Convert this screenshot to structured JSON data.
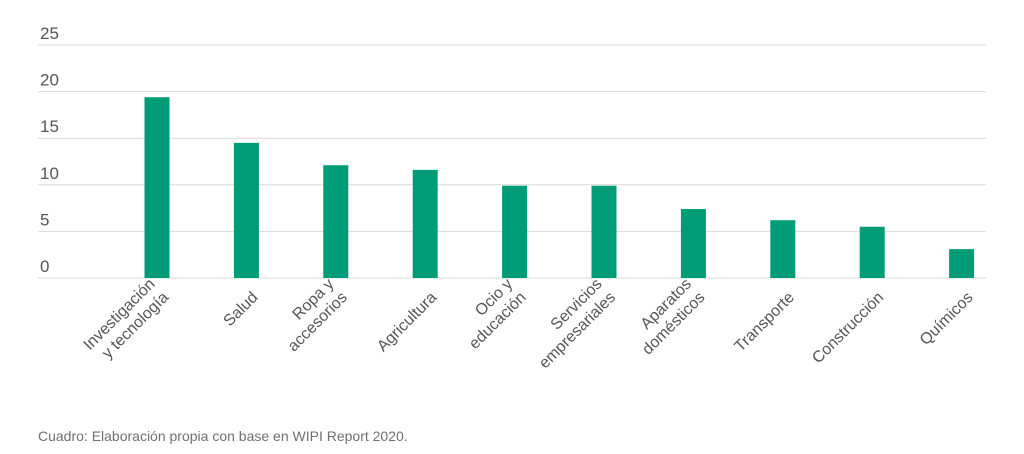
{
  "chart_data": {
    "type": "bar",
    "categories": [
      [
        "Investigación",
        "y tecnología"
      ],
      [
        "Salud"
      ],
      [
        "Ropa y",
        "accesorios"
      ],
      [
        "Agricultura"
      ],
      [
        "Ocio y",
        "educación"
      ],
      [
        "Servicios",
        "empresariales"
      ],
      [
        "Aparatos",
        "domésticos"
      ],
      [
        "Transporte"
      ],
      [
        "Construcción"
      ],
      [
        "Químicos"
      ]
    ],
    "values": [
      19.4,
      14.5,
      12.1,
      11.6,
      9.9,
      9.9,
      7.4,
      6.2,
      5.5,
      3.1
    ],
    "yticks": [
      "0",
      "5",
      "10",
      "15",
      "20",
      "25"
    ],
    "ylim": [
      0,
      25
    ],
    "grid": true,
    "bar_color": "#009b77",
    "grid_color": "#d9d9d9"
  },
  "caption": "Cuadro: Elaboración propia con base en WIPI Report 2020."
}
